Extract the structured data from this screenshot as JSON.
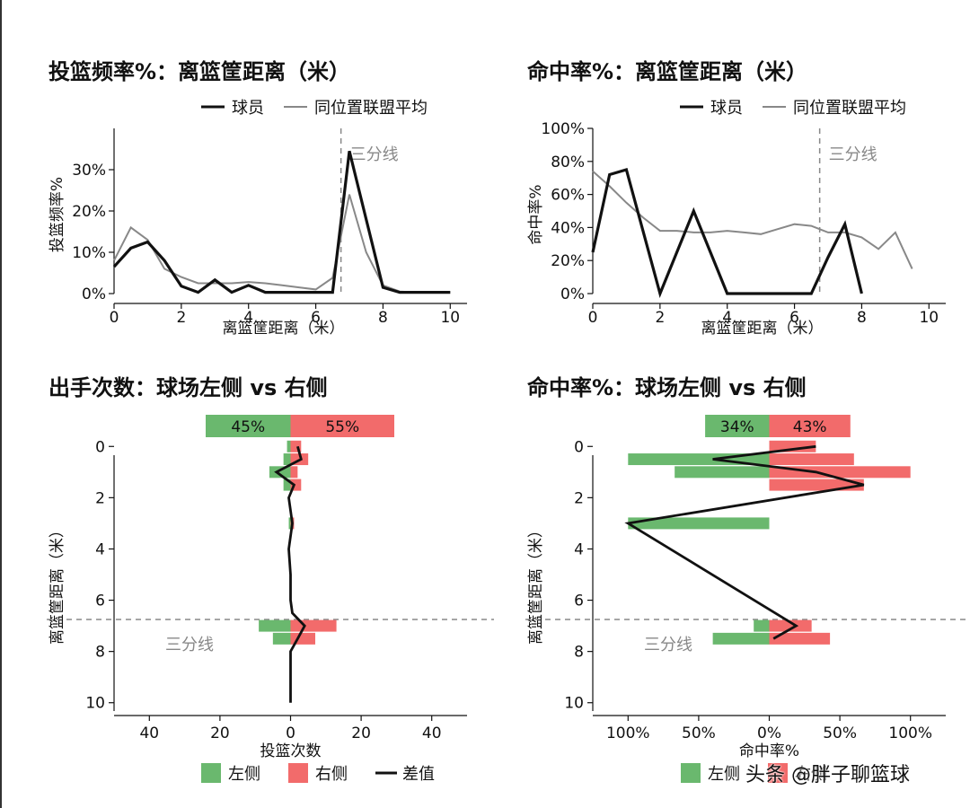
{
  "watermark": "头条 @胖子聊篮球",
  "colors": {
    "player": "#111111",
    "league": "#888888",
    "left": "#6ab86e",
    "right": "#f26b6b",
    "diff": "#111111",
    "threept_line": "#888888"
  },
  "chart_data": [
    {
      "id": "freq_by_distance",
      "type": "line",
      "title": "投篮频率%：离篮筐距离（米）",
      "xlabel": "离篮筐距离（米）",
      "ylabel": "投篮频率%",
      "xlim": [
        0,
        10.5
      ],
      "ylim": [
        0,
        40
      ],
      "xticks": [
        0,
        2,
        4,
        6,
        8,
        10
      ],
      "xtick_labels": [
        "0",
        "2",
        "4",
        "6",
        "8",
        "10"
      ],
      "yticks": [
        0,
        10,
        20,
        30
      ],
      "ytick_labels": [
        "0%",
        "10%",
        "20%",
        "30%"
      ],
      "grid": false,
      "legend_position": "top-right",
      "threept_line": {
        "x": 6.75,
        "label": "三分线"
      },
      "series": [
        {
          "name": "球员",
          "x": [
            0,
            0.5,
            1,
            1.5,
            2,
            2.5,
            3,
            3.5,
            4,
            4.5,
            5,
            5.5,
            6,
            6.5,
            7,
            7.5,
            8,
            8.5,
            9,
            9.5,
            10
          ],
          "y": [
            6.5,
            11,
            12.5,
            8,
            1.8,
            0.3,
            3.3,
            0.3,
            2,
            0.3,
            0.3,
            0.3,
            0.3,
            0.3,
            34.5,
            18,
            1.5,
            0.3,
            0.3,
            0.3,
            0.3
          ]
        },
        {
          "name": "同位置联盟平均",
          "x": [
            0,
            0.5,
            1,
            1.5,
            2,
            2.5,
            3,
            3.5,
            4,
            4.5,
            5,
            5.5,
            6,
            6.5,
            7,
            7.5,
            8,
            8.5,
            9,
            9.5,
            10
          ],
          "y": [
            8,
            16,
            13,
            6,
            4,
            2.5,
            2.5,
            2.5,
            2.8,
            2.5,
            2,
            1.5,
            1,
            3.8,
            24,
            10,
            2,
            0.5,
            0.3,
            0.3,
            0.3
          ]
        }
      ]
    },
    {
      "id": "fg_by_distance",
      "type": "line",
      "title": "命中率%：离篮筐距离（米）",
      "xlabel": "离篮筐距离（米）",
      "ylabel": "命中率%",
      "xlim": [
        0,
        10.5
      ],
      "ylim": [
        0,
        100
      ],
      "xticks": [
        0,
        2,
        4,
        6,
        8,
        10
      ],
      "xtick_labels": [
        "0",
        "2",
        "4",
        "6",
        "8",
        "10"
      ],
      "yticks": [
        0,
        20,
        40,
        60,
        80,
        100
      ],
      "ytick_labels": [
        "0%",
        "20%",
        "40%",
        "60%",
        "80%",
        "100%"
      ],
      "grid": false,
      "legend_position": "top-right",
      "threept_line": {
        "x": 6.75,
        "label": "三分线"
      },
      "series": [
        {
          "name": "球员",
          "x": [
            0,
            0.5,
            1,
            2,
            3,
            4,
            5,
            6,
            6.5,
            7,
            7.5,
            8
          ],
          "y": [
            25,
            72,
            75,
            0,
            50,
            0,
            0,
            0,
            0,
            22,
            42,
            0
          ]
        },
        {
          "name": "同位置联盟平均",
          "x": [
            0,
            0.5,
            1,
            1.5,
            2,
            2.5,
            3,
            3.5,
            4,
            4.5,
            5,
            5.5,
            6,
            6.5,
            7,
            7.5,
            8,
            8.5,
            9,
            9.5
          ],
          "y": [
            74,
            65,
            55,
            46,
            38,
            38,
            37,
            37,
            38,
            37,
            36,
            39,
            42,
            41,
            37,
            37,
            34,
            27,
            37,
            15
          ]
        }
      ]
    },
    {
      "id": "attempts_left_right",
      "type": "bar",
      "orientation": "horizontal",
      "title": "出手次数：球场左侧 vs 右侧",
      "xlabel": "投篮次数",
      "ylabel": "离篮筐距离（米）",
      "xlim": [
        -50,
        50
      ],
      "ylim": [
        10.5,
        -0.5
      ],
      "xticks": [
        -40,
        -20,
        0,
        20,
        40
      ],
      "xtick_labels": [
        "40",
        "20",
        "0",
        "20",
        "40"
      ],
      "yticks": [
        0,
        2,
        4,
        6,
        8,
        10
      ],
      "ytick_labels": [
        "0",
        "2",
        "4",
        "6",
        "8",
        "10"
      ],
      "threept_line": {
        "y": 6.75,
        "label": "三分线"
      },
      "split_bar": {
        "left_label": "45%",
        "right_label": "55%",
        "left_share": 0.45,
        "right_share": 0.55
      },
      "legend": {
        "position": "bottom",
        "items": [
          "左侧",
          "右侧",
          "差值"
        ]
      },
      "distances": [
        0,
        0.5,
        1,
        1.5,
        3,
        7,
        7.5
      ],
      "left": [
        1,
        2,
        6,
        2,
        0.5,
        9,
        5
      ],
      "right": [
        3,
        5,
        2,
        3,
        1,
        13,
        7
      ],
      "diff": {
        "y": [
          0,
          0.5,
          1,
          1.5,
          2,
          3,
          4,
          5,
          6,
          6.5,
          7,
          7.5,
          8,
          10
        ],
        "x": [
          2,
          3,
          -4,
          1,
          -0.5,
          0.5,
          -0.5,
          0,
          0,
          0.5,
          4,
          2,
          0,
          0
        ]
      }
    },
    {
      "id": "fg_left_right",
      "type": "bar",
      "orientation": "horizontal",
      "title": "命中率%：球场左侧 vs 右侧",
      "xlabel": "命中率%",
      "ylabel": "离篮筐距离（米）",
      "xlim": [
        -1.25,
        1.25
      ],
      "ylim": [
        10.5,
        -0.5
      ],
      "xticks": [
        -1,
        -0.5,
        0,
        0.5,
        1
      ],
      "xtick_labels": [
        "100%",
        "50%",
        "0%",
        "50%",
        "100%"
      ],
      "yticks": [
        0,
        2,
        4,
        6,
        8,
        10
      ],
      "ytick_labels": [
        "0",
        "2",
        "4",
        "6",
        "8",
        "10"
      ],
      "threept_line": {
        "y": 6.75,
        "label": "三分线"
      },
      "split_bar": {
        "left_label": "34%",
        "right_label": "43%",
        "left_share": 0.34,
        "right_share": 0.43
      },
      "legend": {
        "position": "bottom",
        "items": [
          "左侧",
          "右侧"
        ]
      },
      "distances": [
        0,
        0.5,
        1,
        1.5,
        3,
        7,
        7.5
      ],
      "left": [
        0,
        1.0,
        0.67,
        0,
        1.0,
        0.11,
        0.4
      ],
      "right": [
        0.33,
        0.6,
        1.0,
        0.67,
        0,
        0.3,
        0.43
      ],
      "diff": {
        "y": [
          0,
          0.5,
          1,
          1.5,
          3,
          7,
          7.5
        ],
        "x": [
          0.33,
          -0.4,
          0.33,
          0.67,
          -1.0,
          0.19,
          0.03
        ]
      }
    }
  ]
}
